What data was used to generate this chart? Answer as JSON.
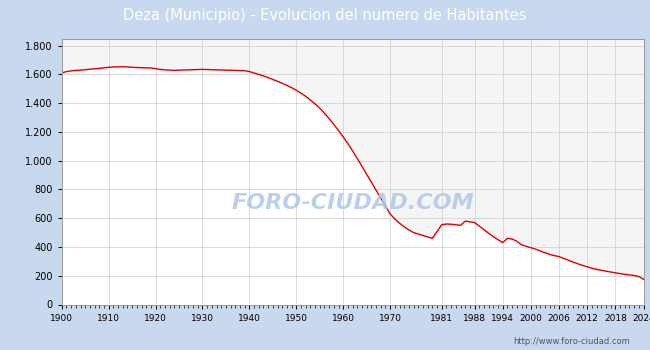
{
  "title": "Deza (Municipio) - Evolucion del numero de Habitantes",
  "title_color": "#ffffff",
  "title_bg_color": "#4f7fc0",
  "plot_bg_color": "#f5f5f5",
  "outer_bg_color": "#c8d8ee",
  "line_color": "#dd0000",
  "fill_color": "#ffffff",
  "watermark": "FORO-CIUDAD.COM",
  "url": "http://www.foro-ciudad.com",
  "years": [
    1900,
    1901,
    1902,
    1903,
    1904,
    1905,
    1906,
    1907,
    1908,
    1909,
    1910,
    1911,
    1912,
    1913,
    1914,
    1915,
    1916,
    1917,
    1918,
    1919,
    1920,
    1921,
    1922,
    1923,
    1924,
    1925,
    1926,
    1927,
    1928,
    1929,
    1930,
    1931,
    1932,
    1933,
    1934,
    1935,
    1936,
    1937,
    1938,
    1939,
    1940,
    1941,
    1942,
    1943,
    1944,
    1945,
    1946,
    1947,
    1948,
    1949,
    1950,
    1951,
    1952,
    1953,
    1954,
    1955,
    1956,
    1957,
    1958,
    1959,
    1960,
    1961,
    1962,
    1963,
    1964,
    1965,
    1966,
    1967,
    1968,
    1969,
    1970,
    1971,
    1972,
    1973,
    1974,
    1975,
    1976,
    1977,
    1978,
    1979,
    1981,
    1982,
    1983,
    1984,
    1985,
    1986,
    1987,
    1988,
    1989,
    1990,
    1991,
    1992,
    1993,
    1994,
    1995,
    1996,
    1997,
    1998,
    1999,
    2000,
    2001,
    2002,
    2003,
    2004,
    2005,
    2006,
    2007,
    2008,
    2009,
    2010,
    2011,
    2012,
    2013,
    2014,
    2015,
    2016,
    2017,
    2018,
    2019,
    2020,
    2021,
    2022,
    2023,
    2024
  ],
  "population": [
    1610,
    1620,
    1625,
    1628,
    1630,
    1633,
    1636,
    1639,
    1642,
    1646,
    1650,
    1652,
    1653,
    1654,
    1652,
    1650,
    1648,
    1647,
    1646,
    1645,
    1640,
    1635,
    1632,
    1630,
    1628,
    1630,
    1631,
    1632,
    1633,
    1634,
    1635,
    1634,
    1633,
    1632,
    1631,
    1630,
    1629,
    1628,
    1627,
    1626,
    1620,
    1610,
    1600,
    1590,
    1578,
    1565,
    1552,
    1538,
    1523,
    1508,
    1490,
    1470,
    1448,
    1422,
    1395,
    1365,
    1330,
    1292,
    1252,
    1210,
    1165,
    1118,
    1068,
    1015,
    960,
    905,
    850,
    795,
    740,
    685,
    630,
    595,
    565,
    540,
    518,
    500,
    490,
    480,
    470,
    460,
    555,
    560,
    558,
    555,
    550,
    580,
    575,
    570,
    545,
    520,
    495,
    472,
    450,
    430,
    460,
    455,
    440,
    415,
    405,
    395,
    385,
    372,
    360,
    348,
    340,
    333,
    320,
    308,
    295,
    283,
    272,
    262,
    252,
    244,
    238,
    232,
    226,
    220,
    215,
    210,
    206,
    202,
    195,
    175
  ],
  "yticks": [
    0,
    200,
    400,
    600,
    800,
    1000,
    1200,
    1400,
    1600,
    1800
  ],
  "ylim": [
    0,
    1850
  ],
  "xlim": [
    1900,
    2024
  ],
  "xtick_labels": [
    "1900",
    "1910",
    "1920",
    "1930",
    "1940",
    "1950",
    "1960",
    "1970",
    "1981",
    "1988",
    "1994",
    "2000",
    "2006",
    "2012",
    "2018",
    "2024"
  ],
  "xtick_positions": [
    1900,
    1910,
    1920,
    1930,
    1940,
    1950,
    1960,
    1970,
    1981,
    1988,
    1994,
    2000,
    2006,
    2012,
    2018,
    2024
  ]
}
